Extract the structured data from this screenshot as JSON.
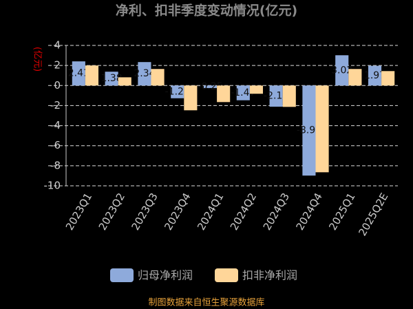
{
  "chart_data": {
    "type": "bar",
    "title": "净利、扣非季度变动情况(亿元)",
    "y_label": "(亿元)",
    "source": "制图数据来自恒生聚源数据库",
    "categories": [
      "2023Q1",
      "2023Q2",
      "2023Q3",
      "2023Q4",
      "2024Q1",
      "2024Q2",
      "2024Q3",
      "2024Q4",
      "2025Q1",
      "2025Q2E"
    ],
    "series": [
      {
        "name": "归母净利润",
        "color": "#8eaadb",
        "values": [
          2.41,
          1.38,
          2.34,
          -1.27,
          -0.25,
          -1.47,
          -2.11,
          -8.98,
          3.02,
          1.97
        ],
        "labels": true
      },
      {
        "name": "扣非净利润",
        "color": "#ffd699",
        "values": [
          2.0,
          0.82,
          1.65,
          -2.47,
          -1.65,
          -0.82,
          -2.13,
          -8.65,
          1.65,
          1.44
        ],
        "labels": false
      }
    ],
    "ylim": [
      -10,
      4
    ],
    "yticks": [
      -10,
      -8,
      -6,
      -4,
      -2,
      0,
      2,
      4
    ],
    "grid": true
  }
}
